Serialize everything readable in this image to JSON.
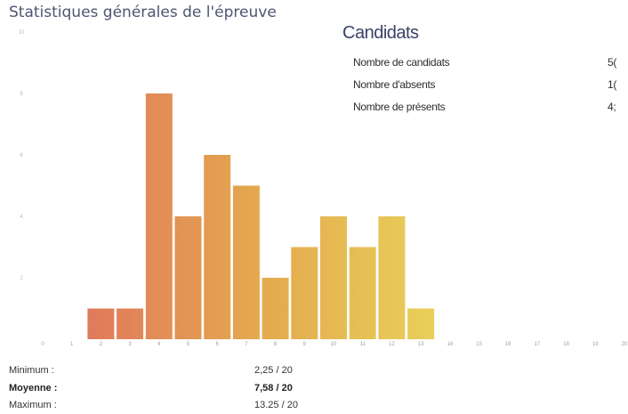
{
  "page": {
    "title": "Statistiques générales de l'épreuve"
  },
  "candidats": {
    "title": "Candidats",
    "rows": [
      {
        "label": "Nombre de candidats",
        "value": "5("
      },
      {
        "label": "Nombre d'absents",
        "value": "1("
      },
      {
        "label": "Nombre de présents",
        "value": "4;"
      }
    ]
  },
  "summary": {
    "rows": [
      {
        "label": "Minimum :",
        "value": "2,25 / 20"
      },
      {
        "label": "Moyenne :",
        "value": "7,58 / 20"
      },
      {
        "label": "Maximum :",
        "value": "13.25 / 20"
      }
    ]
  },
  "chart_data": {
    "type": "bar",
    "title": "",
    "xlabel": "",
    "ylabel": "",
    "x_ticks": [
      "0",
      "1",
      "2",
      "3",
      "4",
      "5",
      "6",
      "7",
      "8",
      "9",
      "10",
      "11",
      "12",
      "13",
      "14",
      "15",
      "16",
      "17",
      "18",
      "19",
      "20"
    ],
    "y_ticks": [
      "2",
      "4",
      "6",
      "8",
      "10"
    ],
    "ylim": [
      0,
      10
    ],
    "categories": [
      2,
      3,
      4,
      5,
      6,
      7,
      8,
      9,
      10,
      11,
      12,
      13
    ],
    "values": [
      1,
      1,
      8,
      4,
      6,
      5,
      2,
      3,
      4,
      3,
      4,
      1
    ],
    "grid": false,
    "legend": "none",
    "colors": [
      "#e07a5c",
      "#e4a94e",
      "#e8cf5a"
    ]
  }
}
